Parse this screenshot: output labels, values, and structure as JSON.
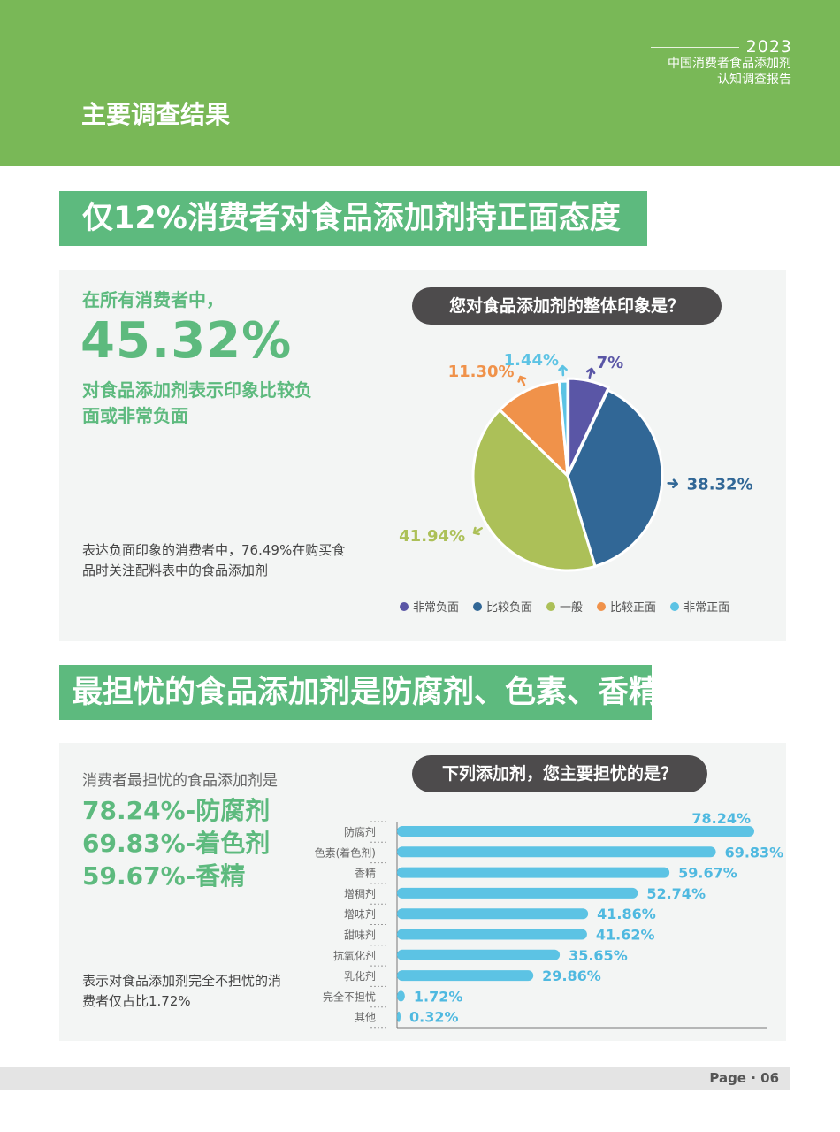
{
  "header": {
    "year": "2023",
    "report_title_line1": "中国消费者食品添加剂",
    "report_title_line2": "认知调查报告",
    "page_title": "主要调查结果"
  },
  "section1": {
    "heading": "仅12%消费者对食品添加剂持正面态度",
    "intro": "在所有消费者中，",
    "big_value": "45.32%",
    "description": "对食品添加剂表示印象比较负面或非常负面",
    "note": "表达负面印象的消费者中，76.49%在购买食品时关注配料表中的食品添加剂",
    "question": "您对食品添加剂的整体印象是？"
  },
  "section2": {
    "heading": "最担忧的食品添加剂是防腐剂、色素、香精",
    "intro": "消费者最担忧的食品添加剂是",
    "stats": [
      "78.24%-防腐剂",
      "69.83%-着色剂",
      "59.67%-香精"
    ],
    "note": "表示对食品添加剂完全不担忧的消费者仅占比1.72%",
    "question": "下列添加剂，您主要担忧的是？"
  },
  "footer": {
    "page": "Page · 06"
  },
  "chart_data": [
    {
      "type": "pie",
      "title": "您对食品添加剂的整体印象是？",
      "legend_position": "bottom",
      "slices": [
        {
          "name": "非常负面",
          "value": 7,
          "label": "7%",
          "color": "#5a56a6"
        },
        {
          "name": "比较负面",
          "value": 38.32,
          "label": "38.32%",
          "color": "#316796"
        },
        {
          "name": "一般",
          "value": 41.94,
          "label": "41.94%",
          "color": "#acc058"
        },
        {
          "name": "比较正面",
          "value": 11.3,
          "label": "11.30%",
          "color": "#f0924a"
        },
        {
          "name": "非常正面",
          "value": 1.44,
          "label": "1.44%",
          "color": "#5cc3e4"
        }
      ]
    },
    {
      "type": "bar",
      "orientation": "horizontal",
      "title": "下列添加剂，您主要担忧的是？",
      "color": "#5cc3e4",
      "label_color": "#4fb9e0",
      "categories": [
        "防腐剂",
        "色素(着色剂)",
        "香精",
        "增稠剂",
        "增味剂",
        "甜味剂",
        "抗氧化剂",
        "乳化剂",
        "完全不担忧",
        "其他"
      ],
      "values": [
        78.24,
        69.83,
        59.67,
        52.74,
        41.86,
        41.62,
        35.65,
        29.86,
        1.72,
        0.32
      ],
      "labels": [
        "78.24%",
        "69.83%",
        "59.67%",
        "52.74%",
        "41.86%",
        "41.62%",
        "35.65%",
        "29.86%",
        "1.72%",
        "0.32%"
      ],
      "xlim": [
        0,
        78.24
      ]
    }
  ]
}
